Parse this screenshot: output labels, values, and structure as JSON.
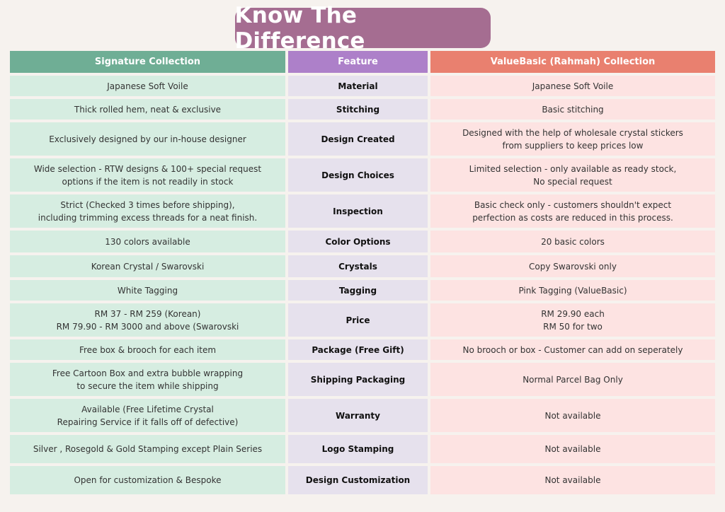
{
  "title": "Know The Difference",
  "headers": {
    "signature": "Signature Collection",
    "feature": "Feature",
    "valuebasic": "ValueBasic (Rahmah) Collection"
  },
  "rows": [
    {
      "signature": "Japanese Soft Voile",
      "feature": "Material",
      "valuebasic": "Japanese Soft Voile"
    },
    {
      "signature": "Thick rolled hem, neat & exclusive",
      "feature": "Stitching",
      "valuebasic": "Basic stitching"
    },
    {
      "signature": "Exclusively designed by our in-house designer",
      "feature": "Design Created",
      "valuebasic": "Designed with the help of wholesale crystal stickers\nfrom suppliers to keep prices low"
    },
    {
      "signature": "Wide selection - RTW designs & 100+ special request\noptions if the item is not readily in stock",
      "feature": "Design Choices",
      "valuebasic": "Limited selection - only available as ready stock,\nNo special request"
    },
    {
      "signature": "Strict (Checked 3 times before shipping),\nincluding trimming excess threads for a neat finish.",
      "feature": "Inspection",
      "valuebasic": "Basic check only - customers shouldn't expect\nperfection as costs are reduced in this process."
    },
    {
      "signature": "130 colors available",
      "feature": "Color Options",
      "valuebasic": "20 basic colors"
    },
    {
      "signature": "Korean Crystal / Swarovski",
      "feature": "Crystals",
      "valuebasic": "Copy Swarovski only"
    },
    {
      "signature": "White Tagging",
      "feature": "Tagging",
      "valuebasic": "Pink Tagging (ValueBasic)"
    },
    {
      "signature": "RM 37 - RM 259 (Korean)\nRM 79.90 - RM 3000 and above (Swarovski",
      "feature": "Price",
      "valuebasic": "RM 29.90 each\nRM 50 for two"
    },
    {
      "signature": "Free box & brooch for each item",
      "feature": "Package (Free Gift)",
      "valuebasic": "No brooch or box - Customer can add on seperately"
    },
    {
      "signature": "Free Cartoon Box and extra bubble wrapping\nto secure the item while shipping",
      "feature": "Shipping Packaging",
      "valuebasic": "Normal Parcel Bag Only"
    },
    {
      "signature": "Available (Free Lifetime Crystal\nRepairing Service if it falls off of defective)",
      "feature": "Warranty",
      "valuebasic": "Not available"
    },
    {
      "signature": "Silver , Rosegold & Gold Stamping except Plain Series",
      "feature": "Logo Stamping",
      "valuebasic": "Not available"
    },
    {
      "signature": "Open for customization & Bespoke",
      "feature": "Design Customization",
      "valuebasic": "Not available"
    }
  ]
}
